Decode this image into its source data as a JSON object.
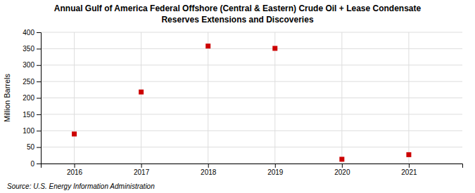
{
  "chart_data": {
    "type": "scatter",
    "title": "Annual Gulf of America Federal Offshore (Central & Eastern) Crude Oil + Lease Condensate",
    "subtitle": "Reserves Extensions and Discoveries",
    "x": [
      2016,
      2017,
      2018,
      2019,
      2020,
      2021
    ],
    "values": [
      90,
      218,
      358,
      351,
      13,
      27
    ],
    "color": "#cc0000",
    "marker": "square",
    "y_label": "Million Barrels",
    "xlim": [
      2015.5,
      2021.8
    ],
    "xticks": [
      2016,
      2017,
      2018,
      2019,
      2020,
      2021
    ],
    "ylim": [
      0,
      400
    ],
    "yticks": [
      0,
      50,
      100,
      150,
      200,
      250,
      300,
      350,
      400
    ],
    "grid": true,
    "annotations": [
      "Source: U.S. Energy Information Administration"
    ]
  }
}
